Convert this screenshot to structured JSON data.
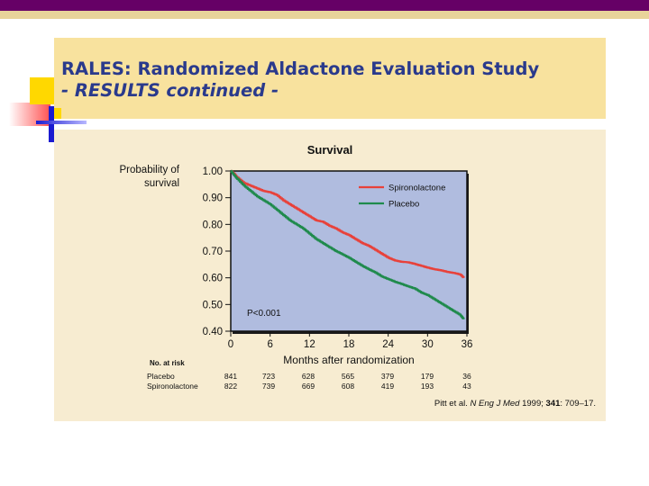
{
  "slide": {
    "title_line1": "RALES: Randomized Aldactone Evaluation Study",
    "title_line2": "- RESULTS continued -",
    "colors": {
      "top_bar": "#660066",
      "top_stripe": "#e8d49a",
      "title_bg": "#f8e29e",
      "title_text": "#2a3a8c",
      "content_bg": "#f7ecd1",
      "plot_bg": "#b0bcdf"
    }
  },
  "chart_data": {
    "type": "line",
    "title": "Survival",
    "ylabel": "Probability of survival",
    "xlabel": "Months after randomization",
    "xlim": [
      0,
      36
    ],
    "ylim": [
      0.4,
      1.0
    ],
    "x_ticks": [
      "0",
      "6",
      "12",
      "18",
      "24",
      "30",
      "36"
    ],
    "y_ticks": [
      "1.00",
      "0.90",
      "0.80",
      "0.70",
      "0.60",
      "0.50",
      "0.40"
    ],
    "grid": false,
    "legend_position": "top-right",
    "annotation": "P<0.001",
    "series": [
      {
        "name": "Spironolactone",
        "color": "#e8413a",
        "x": [
          0,
          0.5,
          1,
          2,
          3,
          4,
          5,
          6,
          7,
          8,
          9,
          10,
          11,
          12,
          13,
          14,
          15,
          16,
          17,
          18,
          19,
          20,
          21,
          22,
          23,
          24,
          25,
          26,
          27,
          28,
          29,
          30,
          31,
          32,
          33,
          34,
          35,
          35.5
        ],
        "y": [
          1.0,
          0.99,
          0.975,
          0.955,
          0.945,
          0.935,
          0.925,
          0.92,
          0.91,
          0.89,
          0.875,
          0.86,
          0.845,
          0.83,
          0.815,
          0.81,
          0.795,
          0.785,
          0.77,
          0.76,
          0.745,
          0.73,
          0.72,
          0.705,
          0.69,
          0.675,
          0.665,
          0.66,
          0.658,
          0.652,
          0.645,
          0.638,
          0.632,
          0.628,
          0.622,
          0.618,
          0.612,
          0.6
        ]
      },
      {
        "name": "Placebo",
        "color": "#1f8a4c",
        "x": [
          0,
          0.5,
          1,
          2,
          3,
          4,
          5,
          6,
          7,
          8,
          9,
          10,
          11,
          12,
          13,
          14,
          15,
          16,
          17,
          18,
          19,
          20,
          21,
          22,
          23,
          24,
          25,
          26,
          27,
          28,
          29,
          30,
          31,
          32,
          33,
          34,
          35,
          35.5
        ],
        "y": [
          1.0,
          0.985,
          0.97,
          0.945,
          0.925,
          0.905,
          0.89,
          0.875,
          0.855,
          0.835,
          0.815,
          0.8,
          0.785,
          0.765,
          0.745,
          0.73,
          0.715,
          0.7,
          0.688,
          0.675,
          0.66,
          0.645,
          0.632,
          0.62,
          0.605,
          0.595,
          0.585,
          0.577,
          0.568,
          0.56,
          0.545,
          0.535,
          0.52,
          0.505,
          0.49,
          0.475,
          0.46,
          0.445
        ]
      }
    ]
  },
  "risk_table": {
    "header": "No. at risk",
    "rows": [
      {
        "label": "Placebo",
        "values": [
          "841",
          "723",
          "628",
          "565",
          "379",
          "179",
          "36"
        ]
      },
      {
        "label": "Spironolactone",
        "values": [
          "822",
          "739",
          "669",
          "608",
          "419",
          "193",
          "43"
        ]
      }
    ]
  },
  "citation": {
    "author": "Pitt et al. ",
    "journal": "N Eng J Med",
    "year": " 1999; ",
    "volume": "341",
    "pages": ": 709–17."
  }
}
